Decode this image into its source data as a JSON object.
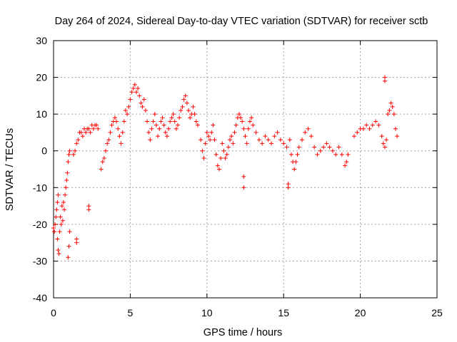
{
  "chart_data": {
    "type": "scatter",
    "title": "Day 264 of 2024, Sidereal Day-to-day VTEC variation (SDTVAR) for receiver sctb",
    "xlabel": "GPS time / hours",
    "ylabel": "SDTVAR / TECUs",
    "xlim": [
      0,
      25
    ],
    "ylim": [
      -40,
      30
    ],
    "xticks": [
      0,
      5,
      10,
      15,
      20,
      25
    ],
    "yticks": [
      -40,
      -30,
      -20,
      -10,
      0,
      10,
      20,
      30
    ],
    "xtick_labels": [
      "0",
      "5",
      "10",
      "15",
      "20",
      "25"
    ],
    "ytick_labels": [
      "-40",
      "-30",
      "-20",
      "-10",
      "0",
      "10",
      "20",
      "30"
    ],
    "grid": true,
    "marker": "+",
    "color": "#ff0000",
    "series": [
      {
        "name": "sctb",
        "points": [
          [
            0.0,
            -21
          ],
          [
            0.05,
            -22
          ],
          [
            0.1,
            -20
          ],
          [
            0.15,
            -18
          ],
          [
            0.2,
            -16
          ],
          [
            0.25,
            -14
          ],
          [
            0.25,
            -24
          ],
          [
            0.3,
            -12
          ],
          [
            0.3,
            -27
          ],
          [
            0.35,
            -28
          ],
          [
            0.4,
            -22
          ],
          [
            0.45,
            -18
          ],
          [
            0.5,
            -20
          ],
          [
            0.55,
            -15
          ],
          [
            0.6,
            -19
          ],
          [
            0.65,
            -14
          ],
          [
            0.7,
            -16
          ],
          [
            0.75,
            -12
          ],
          [
            0.8,
            -10
          ],
          [
            0.85,
            -8
          ],
          [
            0.9,
            -6
          ],
          [
            0.95,
            -3
          ],
          [
            1.0,
            -1
          ],
          [
            1.05,
            0
          ],
          [
            0.95,
            -29
          ],
          [
            1.0,
            -26
          ],
          [
            1.05,
            -22
          ],
          [
            1.3,
            -1
          ],
          [
            1.4,
            0
          ],
          [
            1.5,
            2
          ],
          [
            1.6,
            3
          ],
          [
            1.7,
            5
          ],
          [
            1.8,
            5
          ],
          [
            1.9,
            4
          ],
          [
            2.0,
            6
          ],
          [
            2.1,
            5
          ],
          [
            2.2,
            6
          ],
          [
            2.3,
            6
          ],
          [
            2.4,
            5
          ],
          [
            2.5,
            7
          ],
          [
            2.6,
            6
          ],
          [
            2.7,
            7
          ],
          [
            2.8,
            7
          ],
          [
            2.9,
            6
          ],
          [
            2.3,
            -15
          ],
          [
            2.3,
            -16
          ],
          [
            1.5,
            -24
          ],
          [
            1.5,
            -25
          ],
          [
            3.1,
            -5
          ],
          [
            3.2,
            -3
          ],
          [
            3.3,
            -2
          ],
          [
            3.4,
            0
          ],
          [
            3.5,
            2
          ],
          [
            3.6,
            3
          ],
          [
            3.7,
            5
          ],
          [
            3.8,
            7
          ],
          [
            3.9,
            8
          ],
          [
            4.0,
            9
          ],
          [
            4.1,
            8
          ],
          [
            4.2,
            6
          ],
          [
            4.3,
            4
          ],
          [
            4.4,
            2
          ],
          [
            4.5,
            5
          ],
          [
            4.6,
            8
          ],
          [
            4.7,
            11
          ],
          [
            4.8,
            10
          ],
          [
            4.9,
            12
          ],
          [
            5.0,
            14
          ],
          [
            5.1,
            16
          ],
          [
            5.2,
            17
          ],
          [
            5.3,
            18
          ],
          [
            5.4,
            16
          ],
          [
            5.5,
            17
          ],
          [
            5.6,
            15
          ],
          [
            5.7,
            13
          ],
          [
            5.8,
            12
          ],
          [
            5.9,
            14
          ],
          [
            6.0,
            11
          ],
          [
            6.1,
            8
          ],
          [
            6.2,
            5
          ],
          [
            6.3,
            3
          ],
          [
            6.4,
            6
          ],
          [
            6.5,
            8
          ],
          [
            6.6,
            10
          ],
          [
            6.7,
            7
          ],
          [
            6.8,
            4
          ],
          [
            6.9,
            6
          ],
          [
            7.0,
            8
          ],
          [
            7.1,
            9
          ],
          [
            7.2,
            7
          ],
          [
            7.3,
            5
          ],
          [
            7.4,
            4
          ],
          [
            7.5,
            6
          ],
          [
            7.6,
            8
          ],
          [
            7.7,
            9
          ],
          [
            7.8,
            10
          ],
          [
            7.9,
            8
          ],
          [
            8.0,
            6
          ],
          [
            8.1,
            7
          ],
          [
            8.2,
            9
          ],
          [
            8.3,
            11
          ],
          [
            8.4,
            12
          ],
          [
            8.5,
            14
          ],
          [
            8.6,
            15
          ],
          [
            8.7,
            13
          ],
          [
            8.8,
            11
          ],
          [
            8.9,
            9
          ],
          [
            9.0,
            10
          ],
          [
            9.1,
            12
          ],
          [
            9.2,
            10
          ],
          [
            9.3,
            8
          ],
          [
            9.4,
            7
          ],
          [
            9.6,
            3
          ],
          [
            9.7,
            0
          ],
          [
            9.8,
            -2
          ],
          [
            9.9,
            2
          ],
          [
            10.0,
            5
          ],
          [
            10.1,
            4
          ],
          [
            10.2,
            3
          ],
          [
            10.3,
            5
          ],
          [
            10.4,
            7
          ],
          [
            10.5,
            3
          ],
          [
            10.6,
            -1
          ],
          [
            10.7,
            -4
          ],
          [
            10.8,
            -5
          ],
          [
            10.9,
            -2
          ],
          [
            11.0,
            2
          ],
          [
            11.1,
            0
          ],
          [
            11.2,
            -2
          ],
          [
            11.3,
            -1
          ],
          [
            11.4,
            1
          ],
          [
            11.5,
            3
          ],
          [
            11.6,
            4
          ],
          [
            11.7,
            2
          ],
          [
            11.8,
            5
          ],
          [
            11.9,
            7
          ],
          [
            12.0,
            9
          ],
          [
            12.1,
            10
          ],
          [
            12.2,
            9
          ],
          [
            12.3,
            8
          ],
          [
            12.4,
            6
          ],
          [
            12.5,
            4
          ],
          [
            12.6,
            2
          ],
          [
            12.7,
            6
          ],
          [
            12.8,
            8
          ],
          [
            12.9,
            9
          ],
          [
            13.0,
            7
          ],
          [
            12.4,
            -7
          ],
          [
            12.4,
            -10
          ],
          [
            13.2,
            5
          ],
          [
            13.4,
            3
          ],
          [
            13.6,
            2
          ],
          [
            13.8,
            4
          ],
          [
            14.0,
            3
          ],
          [
            14.2,
            2
          ],
          [
            14.4,
            4
          ],
          [
            14.6,
            5
          ],
          [
            14.8,
            3
          ],
          [
            15.0,
            2
          ],
          [
            15.2,
            1
          ],
          [
            15.3,
            -9
          ],
          [
            15.3,
            -10
          ],
          [
            15.4,
            3
          ],
          [
            15.5,
            -1
          ],
          [
            15.6,
            -3
          ],
          [
            15.7,
            -5
          ],
          [
            15.8,
            -3
          ],
          [
            15.9,
            -1
          ],
          [
            16.0,
            1
          ],
          [
            16.2,
            3
          ],
          [
            16.4,
            5
          ],
          [
            16.6,
            6
          ],
          [
            16.8,
            4
          ],
          [
            17.0,
            1
          ],
          [
            17.2,
            -1
          ],
          [
            17.4,
            0
          ],
          [
            17.6,
            1
          ],
          [
            17.8,
            2
          ],
          [
            18.0,
            1
          ],
          [
            18.2,
            0
          ],
          [
            18.4,
            -1
          ],
          [
            18.6,
            1
          ],
          [
            18.8,
            -1
          ],
          [
            19.0,
            -4
          ],
          [
            19.1,
            -3
          ],
          [
            19.2,
            -1
          ],
          [
            19.6,
            4
          ],
          [
            19.8,
            5
          ],
          [
            20.0,
            6
          ],
          [
            20.2,
            6
          ],
          [
            20.4,
            7
          ],
          [
            20.6,
            6
          ],
          [
            20.8,
            7
          ],
          [
            21.0,
            8
          ],
          [
            21.2,
            7
          ],
          [
            21.4,
            4
          ],
          [
            21.5,
            2
          ],
          [
            21.6,
            1
          ],
          [
            21.7,
            3
          ],
          [
            21.8,
            10
          ],
          [
            21.9,
            11
          ],
          [
            22.0,
            13
          ],
          [
            22.1,
            12
          ],
          [
            22.2,
            10
          ],
          [
            22.3,
            6
          ],
          [
            22.4,
            4
          ],
          [
            21.6,
            19
          ],
          [
            21.6,
            20
          ]
        ]
      }
    ]
  }
}
